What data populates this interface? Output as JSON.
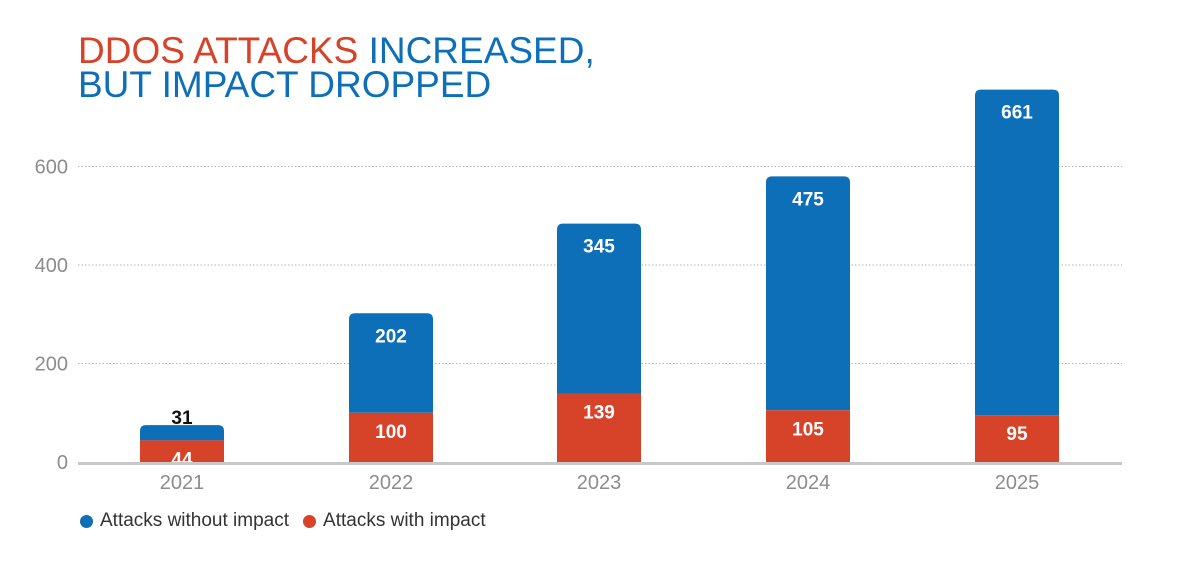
{
  "title": {
    "part_red": "DDOS ATTACKS",
    "part_blue_1": " INCREASED,",
    "part_blue_2": "BUT IMPACT DROPPED"
  },
  "colors": {
    "without_impact": "#0d6fb8",
    "with_impact": "#d64328"
  },
  "chart_data": {
    "type": "bar",
    "stacked": true,
    "categories": [
      "2021",
      "2022",
      "2023",
      "2024",
      "2025"
    ],
    "series": [
      {
        "name": "Attacks with impact",
        "color": "#d64328",
        "values": [
          44,
          100,
          139,
          105,
          95
        ]
      },
      {
        "name": "Attacks without impact",
        "color": "#0d6fb8",
        "values": [
          31,
          202,
          345,
          475,
          661
        ]
      }
    ],
    "yticks": [
      0,
      200,
      400,
      600
    ],
    "ylim": [
      0,
      756
    ],
    "grid": true,
    "legend_position": "bottom-left"
  },
  "legend": [
    {
      "label": "Attacks without impact",
      "color": "#0d6fb8"
    },
    {
      "label": "Attacks with impact",
      "color": "#d64328"
    }
  ]
}
